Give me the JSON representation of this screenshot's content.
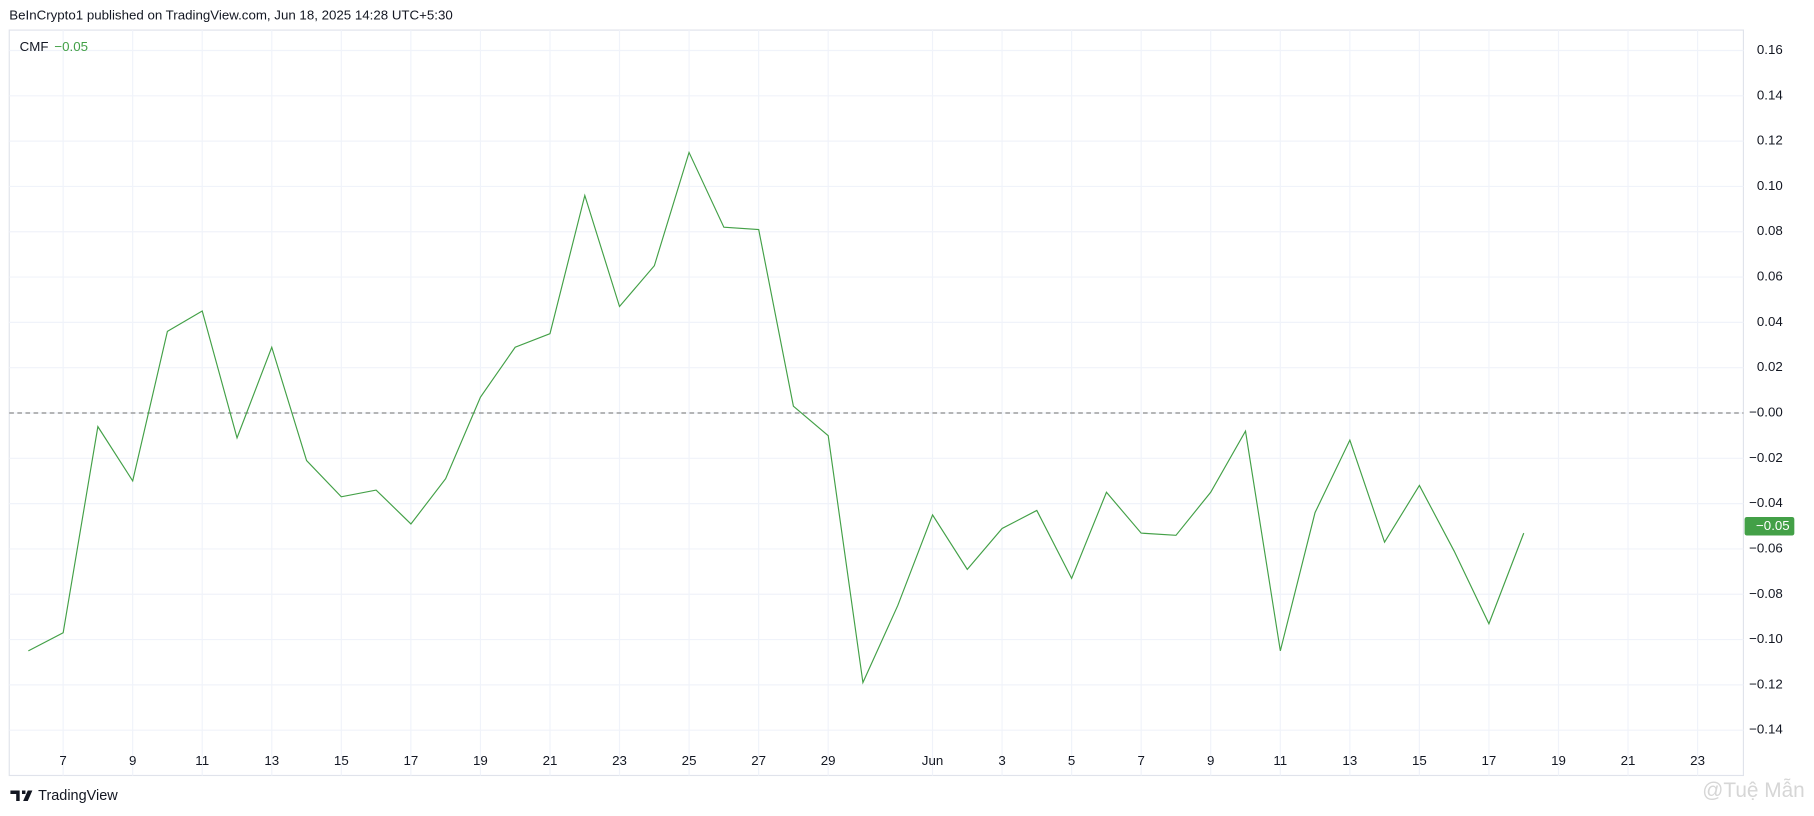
{
  "header": {
    "title": "BeInCrypto1 published on TradingView.com, Jun 18, 2025 14:28 UTC+5:30"
  },
  "footer": {
    "brand": "TradingView",
    "watermark": "@Tuệ Mẫn"
  },
  "chart_data": {
    "type": "line",
    "categories": [
      null,
      "7",
      null,
      "9",
      null,
      "11",
      null,
      "13",
      null,
      "15",
      null,
      "17",
      null,
      "19",
      null,
      "21",
      null,
      "23",
      null,
      "25",
      null,
      "27",
      null,
      "29",
      null,
      null,
      "Jun",
      null,
      "3",
      null,
      "5",
      null,
      "7",
      null,
      "9",
      null,
      "11",
      null,
      "13",
      null,
      "15",
      null,
      "17",
      null,
      "19",
      null,
      "21",
      null,
      "23",
      null
    ],
    "series": [
      {
        "name": "CMF",
        "color": "#43a047",
        "values": [
          -0.105,
          -0.097,
          -0.006,
          -0.03,
          0.036,
          0.045,
          -0.011,
          0.029,
          -0.021,
          -0.037,
          -0.034,
          -0.049,
          -0.029,
          0.007,
          0.029,
          0.035,
          0.096,
          0.047,
          0.065,
          0.115,
          0.082,
          0.081,
          0.003,
          -0.01,
          -0.119,
          -0.085,
          -0.045,
          -0.069,
          -0.051,
          -0.043,
          -0.073,
          -0.035,
          -0.053,
          -0.054,
          -0.035,
          -0.008,
          -0.105,
          -0.044,
          -0.012,
          -0.057,
          -0.032,
          -0.061,
          -0.093,
          -0.053,
          null,
          null,
          null,
          null,
          null,
          null
        ]
      }
    ],
    "last_value": {
      "value": -0.05,
      "label": "−0.05"
    },
    "baseline": 0,
    "ylim": [
      -0.16,
      0.169
    ],
    "yticks": [
      {
        "value": -0.14,
        "label": "−0.14"
      },
      {
        "value": -0.12,
        "label": "−0.12"
      },
      {
        "value": -0.1,
        "label": "−0.10"
      },
      {
        "value": -0.08,
        "label": "−0.08"
      },
      {
        "value": -0.06,
        "label": "−0.06"
      },
      {
        "value": -0.04,
        "label": "−0.04"
      },
      {
        "value": -0.02,
        "label": "−0.02"
      },
      {
        "value": 0,
        "label": "−0.00"
      },
      0.02,
      0.04,
      0.06,
      0.08,
      {
        "value": 0.1,
        "label": "0.10"
      },
      0.12,
      0.14,
      0.16
    ],
    "grid": true
  }
}
